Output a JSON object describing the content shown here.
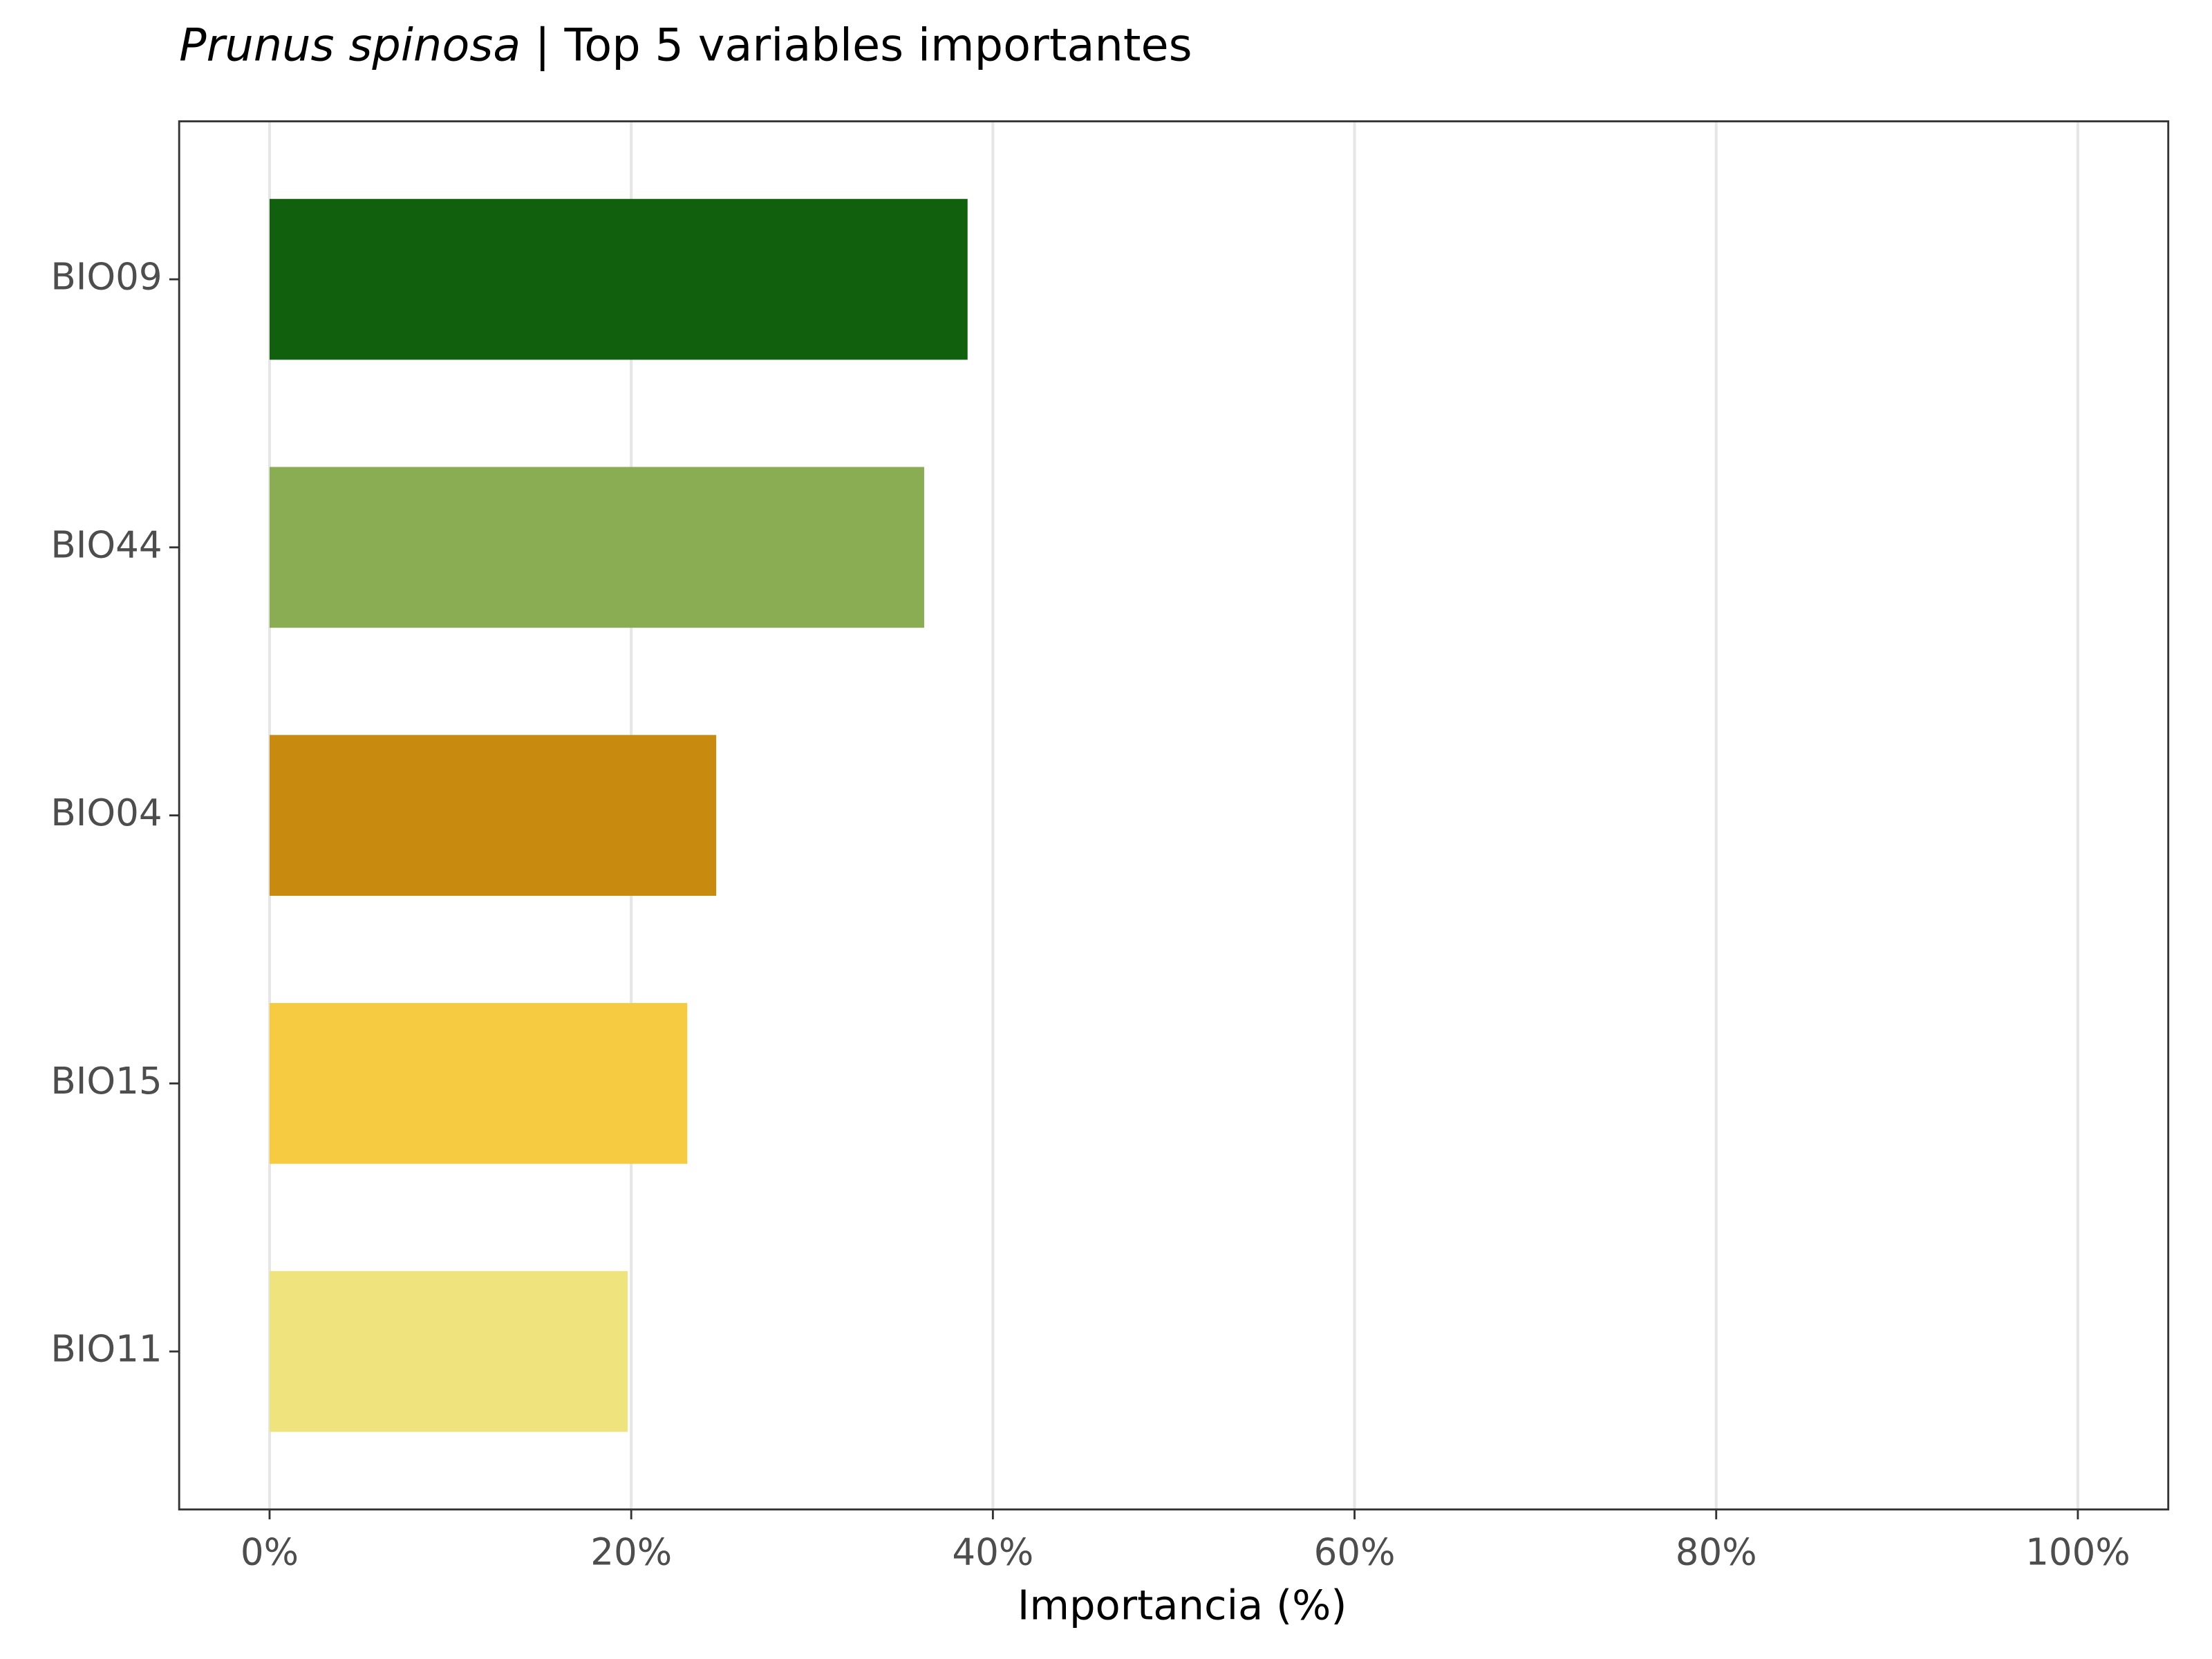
{
  "chart_data": {
    "type": "hbar",
    "title_italic": "Prunus spinosa",
    "title": "| Top 5 variables importantes",
    "x_label": "Importancia (%)",
    "categories": [
      "BIO09",
      "BIO44",
      "BIO04",
      "BIO15",
      "BIO11"
    ],
    "values": [
      38.6,
      36.2,
      24.7,
      23.1,
      19.8
    ],
    "colors": [
      "#11600e",
      "#8aad53",
      "#c98b0f",
      "#f6cb42",
      "#eee37d"
    ],
    "xlim": [
      -5,
      105
    ],
    "xticks": [
      {
        "value": 0,
        "label": "0%"
      },
      {
        "value": 20,
        "label": "20%"
      },
      {
        "value": 40,
        "label": "40%"
      },
      {
        "value": 60,
        "label": "60%"
      },
      {
        "value": 80,
        "label": "80%"
      },
      {
        "value": 100,
        "label": "100%"
      }
    ],
    "grid": true
  }
}
